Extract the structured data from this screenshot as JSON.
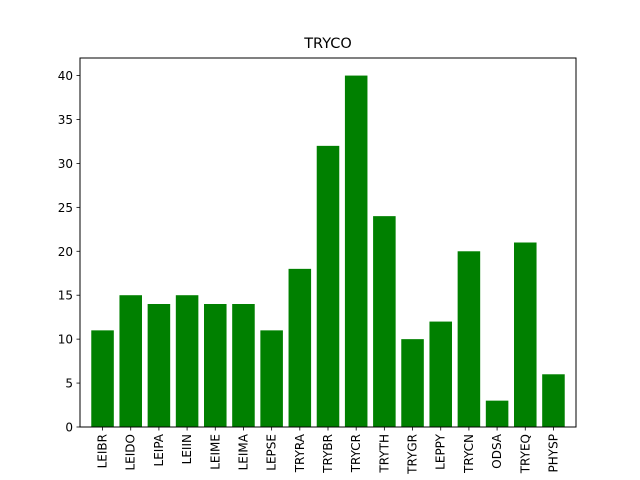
{
  "chart_data": {
    "type": "bar",
    "title": "TRYCO",
    "xlabel": "",
    "ylabel": "",
    "categories": [
      "LEIBR",
      "LEIDO",
      "LEIPA",
      "LEIIN",
      "LEIME",
      "LEIMA",
      "LEPSE",
      "TRYRA",
      "TRYBR",
      "TRYCR",
      "TRYTH",
      "TRYGR",
      "LEPPY",
      "TRYCN",
      "ODSA",
      "TRYEQ",
      "PHYSP"
    ],
    "values": [
      11,
      15,
      14,
      15,
      14,
      14,
      11,
      18,
      32,
      40,
      24,
      10,
      12,
      20,
      3,
      21,
      6
    ],
    "ylim": [
      0,
      42
    ],
    "yticks": [
      0,
      5,
      10,
      15,
      20,
      25,
      30,
      35,
      40
    ],
    "grid": false,
    "bar_color": "#008000",
    "axis_color": "#000000"
  }
}
